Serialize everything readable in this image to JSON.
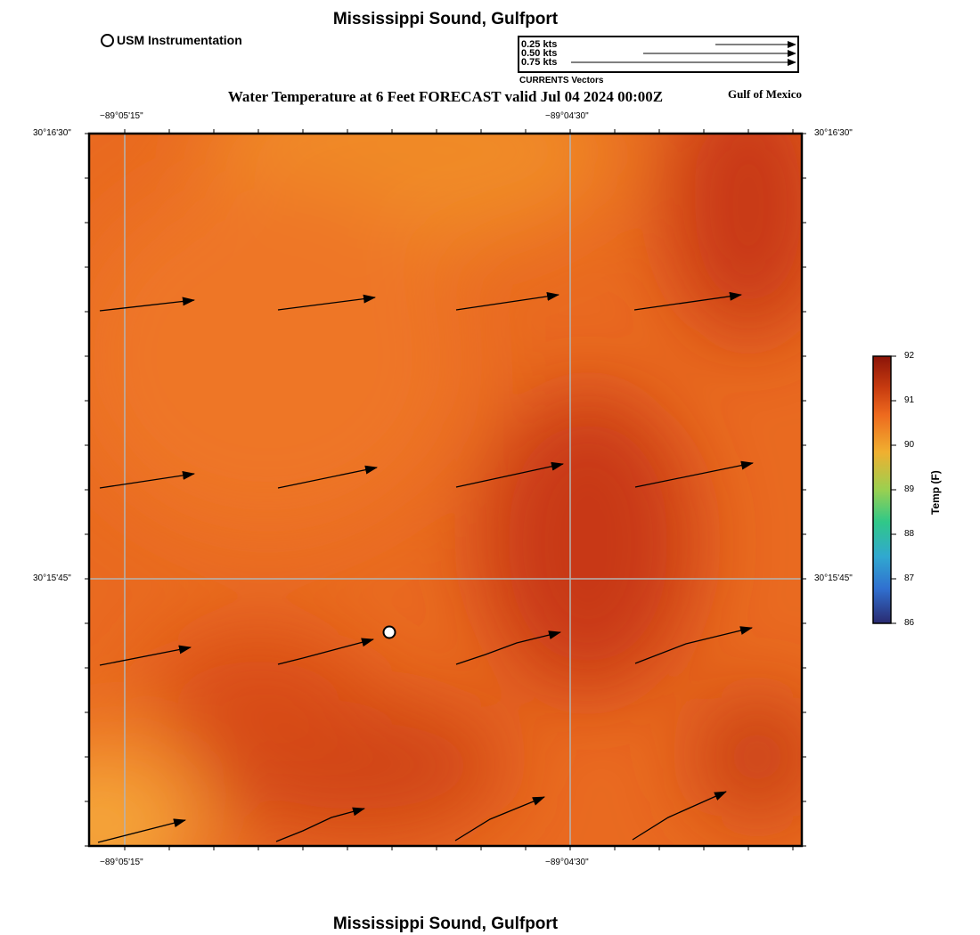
{
  "title_top": "Mississippi Sound, Gulfport",
  "title_bottom": "Mississippi Sound, Gulfport",
  "legend_station": "USM Instrumentation",
  "subtitle": "Water Temperature at 6 Feet FORECAST valid Jul 04 2024 00:00Z",
  "region_label": "Gulf of Mexico",
  "vector_scale": {
    "labels": [
      "0.25 kts",
      "0.50 kts",
      "0.75 kts"
    ],
    "caption": "CURRENTS Vectors"
  },
  "axes": {
    "lon_ticks": [
      "−89°05'15\"",
      "−89°04'30\""
    ],
    "lat_ticks": [
      "30°16'30\"",
      "30°15'45\""
    ]
  },
  "colorbar": {
    "title": "Temp (F)",
    "ticks": [
      "92",
      "91",
      "90",
      "89",
      "88",
      "87",
      "86"
    ],
    "min": 86,
    "max": 92,
    "colors": [
      "#8b1408",
      "#c83c10",
      "#ee6a1e",
      "#f0b030",
      "#9ad050",
      "#30c888",
      "#30a8d0",
      "#3070d0",
      "#2a2a70"
    ]
  },
  "station": {
    "name": "USM Instrumentation"
  }
}
